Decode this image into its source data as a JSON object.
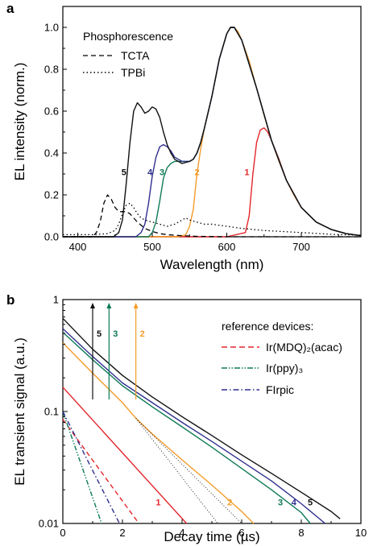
{
  "colors": {
    "d1": "#e3262b",
    "d2": "#f39b2a",
    "d3": "#0e7a55",
    "d4": "#2f2f8f",
    "d5": "#111111",
    "ref_mdq": "#e3262b",
    "ref_ppy": "#0e7a55",
    "ref_firpic": "#2f2f8f",
    "black": "#000000"
  },
  "chart_data": [
    {
      "type": "line",
      "panel_label": "a",
      "xlabel": "Wavelength (nm)",
      "ylabel": "EL intensity (norm.)",
      "xlim": [
        380,
        780
      ],
      "ylim": [
        0,
        1.1
      ],
      "xticks": [
        "400",
        "500",
        "600",
        "700"
      ],
      "xtick_values": [
        400,
        500,
        600,
        700
      ],
      "yticks": [
        "0.0",
        "0.2",
        "0.4",
        "0.6",
        "0.8",
        "1.0"
      ],
      "ytick_values": [
        0,
        0.2,
        0.4,
        0.6,
        0.8,
        1.0
      ],
      "legend_title": "Phosphorescence",
      "legend_position": "top-left",
      "legend": [
        {
          "name": "TCTA",
          "style": "dashed"
        },
        {
          "name": "TPBi",
          "style": "dotted"
        }
      ],
      "curve_labels": [
        {
          "text": "1",
          "color_key": "d1",
          "at": [
            627,
            0.31
          ]
        },
        {
          "text": "2",
          "color_key": "d2",
          "at": [
            560,
            0.31
          ]
        },
        {
          "text": "3",
          "color_key": "d3",
          "at": [
            513,
            0.31
          ]
        },
        {
          "text": "4",
          "color_key": "d4",
          "at": [
            497,
            0.31
          ]
        },
        {
          "text": "5",
          "color_key": "d5",
          "at": [
            462,
            0.31
          ]
        }
      ],
      "series": [
        {
          "name": "1",
          "style": "solid",
          "color_key": "d1",
          "x": [
            380,
            600,
            625,
            630,
            635,
            640,
            645,
            650,
            655,
            660,
            670,
            680,
            690,
            700,
            720,
            740,
            760,
            780
          ],
          "y": [
            0,
            0,
            0.02,
            0.1,
            0.3,
            0.45,
            0.51,
            0.52,
            0.5,
            0.46,
            0.37,
            0.27,
            0.2,
            0.14,
            0.07,
            0.035,
            0.015,
            0.005
          ]
        },
        {
          "name": "2",
          "style": "solid",
          "color_key": "d2",
          "x": [
            380,
            535,
            545,
            550,
            555,
            560,
            565,
            570,
            580,
            590,
            600,
            605,
            610,
            615,
            620,
            630,
            640,
            650,
            660,
            670,
            680,
            690,
            700,
            720,
            740,
            760,
            780
          ],
          "y": [
            0,
            0,
            0.01,
            0.05,
            0.13,
            0.3,
            0.42,
            0.52,
            0.67,
            0.85,
            0.97,
            1.0,
            1.0,
            0.98,
            0.94,
            0.84,
            0.71,
            0.58,
            0.46,
            0.36,
            0.27,
            0.2,
            0.14,
            0.07,
            0.035,
            0.015,
            0.005
          ]
        },
        {
          "name": "3",
          "style": "solid",
          "color_key": "d3",
          "x": [
            380,
            495,
            500,
            505,
            510,
            515,
            520,
            525,
            530,
            540,
            550,
            555,
            560,
            565,
            570,
            580,
            590,
            600,
            605,
            610,
            620,
            640,
            660,
            680,
            700,
            720,
            740,
            760,
            780
          ],
          "y": [
            0,
            0,
            0.02,
            0.07,
            0.17,
            0.28,
            0.33,
            0.35,
            0.36,
            0.36,
            0.36,
            0.37,
            0.4,
            0.45,
            0.52,
            0.67,
            0.85,
            0.97,
            1.0,
            1.0,
            0.94,
            0.71,
            0.46,
            0.27,
            0.14,
            0.07,
            0.035,
            0.015,
            0.005
          ]
        },
        {
          "name": "4",
          "style": "solid",
          "color_key": "d4",
          "x": [
            380,
            478,
            485,
            490,
            495,
            500,
            505,
            510,
            515,
            520,
            525,
            530,
            540,
            550,
            555,
            560,
            565,
            570,
            580,
            590,
            600,
            605,
            610,
            620,
            640,
            660,
            680,
            700,
            720,
            740,
            760,
            780
          ],
          "y": [
            0,
            0,
            0.02,
            0.06,
            0.16,
            0.29,
            0.38,
            0.43,
            0.44,
            0.43,
            0.41,
            0.38,
            0.36,
            0.36,
            0.37,
            0.4,
            0.45,
            0.52,
            0.67,
            0.85,
            0.97,
            1.0,
            1.0,
            0.94,
            0.71,
            0.46,
            0.27,
            0.14,
            0.07,
            0.035,
            0.015,
            0.005
          ]
        },
        {
          "name": "5",
          "style": "solid",
          "color_key": "d5",
          "x": [
            380,
            448,
            455,
            460,
            465,
            470,
            475,
            480,
            485,
            490,
            495,
            500,
            505,
            510,
            515,
            520,
            525,
            530,
            540,
            550,
            555,
            560,
            565,
            570,
            580,
            590,
            600,
            605,
            610,
            620,
            640,
            660,
            680,
            700,
            720,
            740,
            760,
            780
          ],
          "y": [
            0,
            0,
            0.02,
            0.08,
            0.25,
            0.45,
            0.6,
            0.64,
            0.62,
            0.59,
            0.6,
            0.62,
            0.61,
            0.57,
            0.5,
            0.44,
            0.4,
            0.37,
            0.35,
            0.36,
            0.37,
            0.4,
            0.45,
            0.52,
            0.67,
            0.85,
            0.97,
            1.0,
            1.0,
            0.94,
            0.71,
            0.46,
            0.27,
            0.14,
            0.07,
            0.035,
            0.015,
            0.005
          ]
        },
        {
          "name": "TCTA",
          "style": "dashed",
          "color_key": "black",
          "x": [
            380,
            420,
            425,
            430,
            435,
            440,
            445,
            450,
            455,
            460,
            465,
            470,
            475,
            480,
            490,
            500,
            510,
            520,
            540,
            560,
            600,
            650,
            700,
            780
          ],
          "y": [
            0,
            0,
            0.02,
            0.07,
            0.16,
            0.2,
            0.18,
            0.14,
            0.12,
            0.12,
            0.12,
            0.11,
            0.09,
            0.07,
            0.04,
            0.025,
            0.015,
            0.01,
            0.005,
            0.002,
            0,
            0,
            0,
            0
          ]
        },
        {
          "name": "TPBi",
          "style": "dotted",
          "color_key": "black",
          "x": [
            380,
            400,
            420,
            440,
            450,
            455,
            460,
            465,
            470,
            475,
            480,
            485,
            490,
            500,
            510,
            520,
            530,
            540,
            545,
            550,
            560,
            570,
            580,
            600,
            620,
            650,
            700,
            750,
            780
          ],
          "y": [
            0.01,
            0.01,
            0.01,
            0.015,
            0.03,
            0.06,
            0.11,
            0.15,
            0.16,
            0.14,
            0.11,
            0.09,
            0.08,
            0.07,
            0.06,
            0.05,
            0.06,
            0.08,
            0.09,
            0.08,
            0.07,
            0.06,
            0.06,
            0.05,
            0.04,
            0.03,
            0.02,
            0.01,
            0.008
          ]
        }
      ]
    },
    {
      "type": "line",
      "panel_label": "b",
      "xlabel": "Decay time (µs)",
      "ylabel": "EL transient signal (a.u.)",
      "xlim": [
        0,
        10
      ],
      "ylim": [
        0.01,
        1
      ],
      "yscale": "log",
      "xticks": [
        "0",
        "2",
        "4",
        "6",
        "8",
        "10"
      ],
      "xtick_values": [
        0,
        2,
        4,
        6,
        8,
        10
      ],
      "yticks": [
        "0.01",
        "0.1",
        "1"
      ],
      "ytick_values": [
        0.01,
        0.1,
        1
      ],
      "legend_title": "reference devices:",
      "legend_position": "top-right",
      "legend": [
        {
          "name": "Ir(MDQ)₂(acac)",
          "style": "dashed",
          "color_key": "ref_mdq"
        },
        {
          "name": "Ir(ppy)₃",
          "style": "dashdotdot",
          "color_key": "ref_ppy"
        },
        {
          "name": "FIrpic",
          "style": "dashdot",
          "color_key": "ref_firpic"
        }
      ],
      "arrows": [
        {
          "text": "5",
          "x": 1.0,
          "color_key": "d5"
        },
        {
          "text": "3",
          "x": 1.55,
          "color_key": "d3"
        },
        {
          "text": "2",
          "x": 2.45,
          "color_key": "d2"
        }
      ],
      "curve_labels": [
        {
          "text": "1",
          "color_key": "d1",
          "at": [
            3.2,
            0.0155
          ]
        },
        {
          "text": "2",
          "color_key": "d2",
          "at": [
            5.6,
            0.0155
          ]
        },
        {
          "text": "3",
          "color_key": "d3",
          "at": [
            7.3,
            0.0155
          ]
        },
        {
          "text": "4",
          "color_key": "d4",
          "at": [
            7.75,
            0.0155
          ]
        },
        {
          "text": "5",
          "color_key": "d5",
          "at": [
            8.3,
            0.0155
          ]
        }
      ],
      "series": [
        {
          "name": "1",
          "style": "solid",
          "color_key": "d1",
          "x": [
            0,
            4.15
          ],
          "y": [
            0.165,
            0.01
          ]
        },
        {
          "name": "2",
          "style": "solid",
          "color_key": "d2",
          "x": [
            0,
            1,
            2,
            2.45,
            3,
            4,
            5,
            6,
            6.4
          ],
          "y": [
            0.41,
            0.22,
            0.12,
            0.087,
            0.063,
            0.037,
            0.022,
            0.0128,
            0.01
          ]
        },
        {
          "name": "3",
          "style": "solid",
          "color_key": "d3",
          "x": [
            0,
            1,
            2,
            3,
            4,
            5,
            6,
            7,
            8,
            8.3
          ],
          "y": [
            0.51,
            0.29,
            0.17,
            0.11,
            0.073,
            0.048,
            0.031,
            0.02,
            0.0125,
            0.01
          ]
        },
        {
          "name": "4",
          "style": "solid",
          "color_key": "d4",
          "x": [
            0,
            1,
            2,
            3,
            4,
            5,
            6,
            7,
            8,
            8.8
          ],
          "y": [
            0.55,
            0.31,
            0.18,
            0.12,
            0.08,
            0.054,
            0.036,
            0.024,
            0.015,
            0.01
          ]
        },
        {
          "name": "5",
          "style": "solid",
          "color_key": "d5",
          "x": [
            0,
            1,
            2,
            3,
            4,
            5,
            6,
            7,
            8,
            9,
            9.3
          ],
          "y": [
            0.68,
            0.36,
            0.21,
            0.135,
            0.09,
            0.061,
            0.041,
            0.028,
            0.019,
            0.0128,
            0.011
          ]
        },
        {
          "name": "Ir(MDQ)₂(acac)",
          "style": "dashed",
          "color_key": "ref_mdq",
          "x": [
            0,
            2.55
          ],
          "y": [
            0.085,
            0.01
          ]
        },
        {
          "name": "Ir(ppy)₃",
          "style": "dashdotdot",
          "color_key": "ref_ppy",
          "x": [
            0,
            1.3
          ],
          "y": [
            0.1,
            0.01
          ]
        },
        {
          "name": "FIrpic",
          "style": "dashdot",
          "color_key": "ref_firpic",
          "x": [
            0,
            1.9
          ],
          "y": [
            0.1,
            0.01
          ]
        },
        {
          "name": "",
          "style": "thin-dotted",
          "color_key": "black",
          "x": [
            2.45,
            5.2
          ],
          "y": [
            0.087,
            0.01
          ]
        },
        {
          "name": "",
          "style": "thin-dotted",
          "color_key": "black",
          "x": [
            2.45,
            6.0
          ],
          "y": [
            0.087,
            0.01
          ]
        }
      ]
    }
  ]
}
